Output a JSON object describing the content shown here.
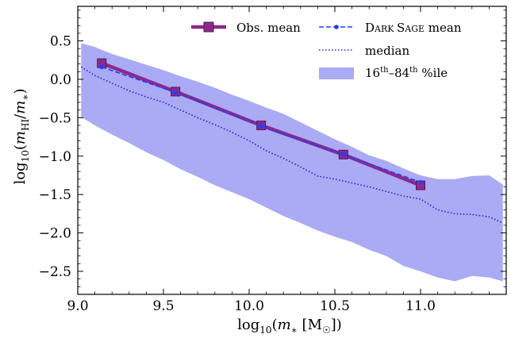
{
  "chart_data": {
    "type": "line",
    "xlabel": "log₁₀(m* [M☉])",
    "ylabel": "log₁₀(m_HI/m*)",
    "xlim": [
      9.0,
      11.5
    ],
    "ylim": [
      -2.8,
      0.95
    ],
    "x_ticks": [
      9.0,
      9.5,
      10.0,
      10.5,
      11.0
    ],
    "x_tick_labels": [
      "9.0",
      "9.5",
      "10.0",
      "10.5",
      "11.0"
    ],
    "y_ticks": [
      0.5,
      0.0,
      -0.5,
      -1.0,
      -1.5,
      -2.0,
      -2.5
    ],
    "y_tick_labels": [
      "0.5",
      "0.0",
      "−0.5",
      "−1.0",
      "−1.5",
      "−2.0",
      "−2.5"
    ],
    "grid": false,
    "legend_position": "top-right",
    "legend": {
      "obs_mean": "Obs. mean",
      "ds_mean_prefix": "D",
      "ds_mean_small1": "ARK ",
      "ds_mean_s": "S",
      "ds_mean_small2": "AGE",
      "ds_mean_suffix": " mean",
      "median": "median",
      "pct_16": "16",
      "pct_th1": "th",
      "pct_dash": "–84",
      "pct_th2": "th",
      "pct_suffix": " %ile"
    },
    "series": [
      {
        "name": "Obs. mean",
        "color": "#8b2a8b",
        "style": "solid-square-markers",
        "x": [
          9.14,
          9.57,
          10.07,
          10.55,
          11.0
        ],
        "y": [
          0.21,
          -0.16,
          -0.6,
          -0.98,
          -1.38
        ]
      },
      {
        "name": "Dark Sage mean",
        "color": "#1f3fff",
        "style": "dashed-dot-markers",
        "x": [
          9.14,
          9.57,
          10.07,
          10.55,
          11.0
        ],
        "y": [
          0.16,
          -0.17,
          -0.61,
          -0.98,
          -1.34
        ]
      },
      {
        "name": "median",
        "color": "#1a2acc",
        "style": "dotted",
        "x": [
          9.02,
          9.1,
          9.2,
          9.3,
          9.4,
          9.5,
          9.6,
          9.7,
          9.8,
          9.9,
          10.0,
          10.1,
          10.2,
          10.3,
          10.4,
          10.5,
          10.6,
          10.7,
          10.8,
          10.9,
          11.0,
          11.1,
          11.2,
          11.3,
          11.4,
          11.48
        ],
        "y": [
          0.16,
          0.05,
          -0.05,
          -0.15,
          -0.23,
          -0.3,
          -0.4,
          -0.5,
          -0.59,
          -0.69,
          -0.8,
          -0.93,
          -1.03,
          -1.14,
          -1.26,
          -1.3,
          -1.35,
          -1.4,
          -1.46,
          -1.52,
          -1.56,
          -1.7,
          -1.75,
          -1.76,
          -1.79,
          -1.87
        ]
      },
      {
        "name": "16th–84th %ile",
        "color": "#aaaaf5",
        "style": "band",
        "x": [
          9.02,
          9.1,
          9.2,
          9.3,
          9.4,
          9.5,
          9.6,
          9.7,
          9.8,
          9.9,
          10.0,
          10.1,
          10.2,
          10.3,
          10.4,
          10.5,
          10.6,
          10.7,
          10.8,
          10.9,
          11.0,
          11.1,
          11.2,
          11.3,
          11.4,
          11.48
        ],
        "y_upper": [
          0.47,
          0.42,
          0.33,
          0.26,
          0.19,
          0.12,
          0.04,
          -0.03,
          -0.11,
          -0.2,
          -0.28,
          -0.37,
          -0.45,
          -0.56,
          -0.67,
          -0.78,
          -0.88,
          -0.99,
          -1.06,
          -1.16,
          -1.25,
          -1.3,
          -1.3,
          -1.26,
          -1.25,
          -1.37
        ],
        "y_lower": [
          -0.49,
          -0.6,
          -0.72,
          -0.83,
          -0.95,
          -1.05,
          -1.17,
          -1.27,
          -1.38,
          -1.47,
          -1.56,
          -1.67,
          -1.78,
          -1.87,
          -1.97,
          -2.05,
          -2.12,
          -2.22,
          -2.3,
          -2.43,
          -2.5,
          -2.58,
          -2.63,
          -2.56,
          -2.58,
          -2.63
        ]
      }
    ]
  }
}
